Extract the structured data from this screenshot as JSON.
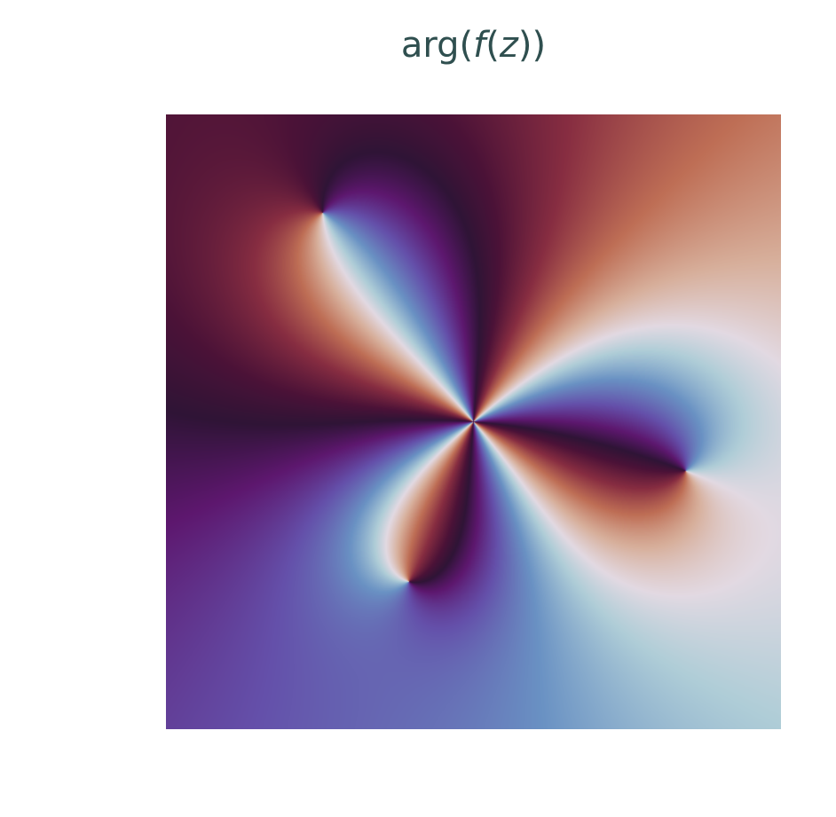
{
  "chart_data": {
    "type": "heatmap",
    "title": "arg(f(z))",
    "title_parts": {
      "prefix": "arg(",
      "func": "f",
      "open": "(",
      "var": "z",
      "suffix": "))"
    },
    "description_kind": "domain-coloring phase plot of a complex function",
    "colormap": "twilight_shifted",
    "xlim": [
      -1,
      1
    ],
    "ylim": [
      -1,
      1
    ],
    "zero_of_order_4": {
      "re": 0.0,
      "im": 0.0,
      "order": 4
    },
    "poles": [
      {
        "re": -0.49,
        "im": 0.68
      },
      {
        "re": 0.69,
        "im": -0.16
      },
      {
        "re": -0.21,
        "im": -0.52
      }
    ],
    "phase_offset_turns": 0.55,
    "grid": false,
    "axes_visible": false,
    "colors": {
      "title": "#2f4f4f",
      "background": "#ffffff"
    }
  }
}
